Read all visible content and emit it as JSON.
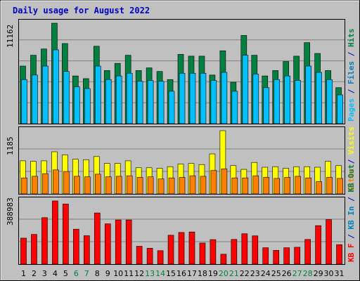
{
  "title": "Daily usage for August 2022",
  "colors": {
    "background": "#c0c0c0",
    "title": "#0000c0",
    "hits": "#008040",
    "files": "#00c0c0",
    "pages": "#00c0ff",
    "visits": "#ffff00",
    "sites": "#ff8000",
    "kb_in": "#0080c0",
    "kb_out": "#008040",
    "kbf": "#ff0000",
    "weekend_label": "#008040"
  },
  "panel_max_labels": {
    "hits": "11162",
    "visits": "1185",
    "kbf": "388983"
  },
  "right_labels": {
    "top": [
      {
        "text": "Pages",
        "color_key": "pages"
      },
      {
        "text": " / ",
        "color_key": "title"
      },
      {
        "text": "Files",
        "color_key": "kb_in"
      },
      {
        "text": " / ",
        "color_key": "title"
      },
      {
        "text": "Hits",
        "color_key": "hits"
      }
    ],
    "middle": [
      {
        "text": "Sites",
        "color_key": "sites"
      },
      {
        "text": " / ",
        "color_key": "title"
      },
      {
        "text": "Visits",
        "color_key": "visits"
      }
    ],
    "bottom": [
      {
        "text": "KB F",
        "color_key": "kbf"
      },
      {
        "text": " / ",
        "color_key": "title"
      },
      {
        "text": "KB In",
        "color_key": "kb_in"
      },
      {
        "text": " / ",
        "color_key": "title"
      },
      {
        "text": "KB Out",
        "color_key": "kb_out"
      }
    ]
  },
  "chart_data": {
    "type": "bar",
    "categories": [
      "1",
      "2",
      "3",
      "4",
      "5",
      "6",
      "7",
      "8",
      "9",
      "10",
      "11",
      "12",
      "13",
      "14",
      "15",
      "16",
      "17",
      "18",
      "19",
      "20",
      "21",
      "22",
      "23",
      "24",
      "25",
      "26",
      "27",
      "28",
      "29",
      "30",
      "31"
    ],
    "weekend_days": [
      "6",
      "7",
      "13",
      "14",
      "20",
      "21",
      "27",
      "28"
    ],
    "panels": [
      {
        "id": "hits",
        "max_label": "11162",
        "series": [
          {
            "name": "Hits",
            "values": [
              6400,
              7600,
              8300,
              11162,
              8900,
              5300,
              5000,
              8600,
              5900,
              6700,
              7600,
              5900,
              6200,
              5800,
              4900,
              7700,
              7500,
              7500,
              5400,
              8100,
              4600,
              9800,
              7600,
              5300,
              5900,
              6900,
              7500,
              9000,
              7800,
              5900,
              4000
            ]
          },
          {
            "name": "Files",
            "values": [
              4900,
              5400,
              6400,
              8200,
              5800,
              4100,
              3900,
              6400,
              4900,
              5300,
              5600,
              4700,
              4800,
              4700,
              3600,
              5600,
              5600,
              5600,
              4800,
              5700,
              3600,
              7600,
              5500,
              4000,
              4900,
              5300,
              4800,
              6400,
              5700,
              4900,
              3200
            ]
          },
          {
            "name": "Pages",
            "values": [
              4900,
              5400,
              6400,
              8200,
              5800,
              4100,
              3900,
              6400,
              4900,
              5300,
              5600,
              4700,
              4800,
              4700,
              3600,
              5600,
              5600,
              5600,
              4800,
              5700,
              3600,
              7600,
              5500,
              4000,
              4900,
              5300,
              4800,
              6400,
              5700,
              4900,
              3200
            ]
          }
        ]
      },
      {
        "id": "visits",
        "max_label": "1185",
        "series": [
          {
            "name": "Visits",
            "values": [
              620,
              610,
              620,
              790,
              730,
              650,
              640,
              700,
              570,
              570,
              620,
              490,
              490,
              480,
              510,
              560,
              570,
              550,
              750,
              1185,
              530,
              460,
              590,
              500,
              510,
              480,
              510,
              510,
              500,
              610,
              530
            ]
          },
          {
            "name": "Sites",
            "values": [
              300,
              330,
              380,
              450,
              420,
              330,
              320,
              370,
              320,
              330,
              340,
              310,
              320,
              280,
              300,
              310,
              340,
              330,
              440,
              470,
              300,
              300,
              340,
              310,
              290,
              310,
              330,
              300,
              230,
              310,
              290
            ]
          }
        ]
      },
      {
        "id": "kbf",
        "max_label": "388983",
        "series": [
          {
            "name": "KB F",
            "values": [
              160000,
              183000,
              286000,
              388983,
              370000,
              215000,
              175000,
              315000,
              248000,
              272000,
              272000,
              110000,
              98000,
              83000,
              178000,
              195000,
              198000,
              130000,
              151000,
              61000,
              152000,
              187000,
              174000,
              101000,
              85000,
              101000,
              104000,
              152000,
              237000,
              274000,
              120000
            ]
          }
        ]
      }
    ]
  }
}
